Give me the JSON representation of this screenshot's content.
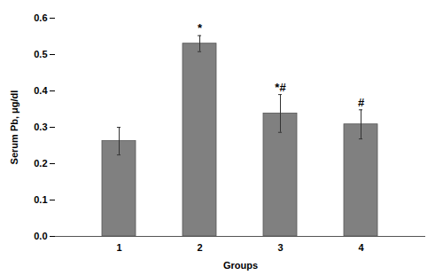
{
  "chart_data": {
    "type": "bar",
    "categories": [
      "1",
      "2",
      "3",
      "4"
    ],
    "values": [
      0.262,
      0.53,
      0.338,
      0.308
    ],
    "errors": [
      0.038,
      0.022,
      0.052,
      0.04
    ],
    "annotations": [
      null,
      "*",
      "*#",
      "#"
    ],
    "color": "#808080",
    "xlabel": "Groups",
    "ylabel": "Serum Pb, μg/dl",
    "ylim": [
      0,
      0.6
    ],
    "yticks": [
      {
        "value": 0,
        "label": "0.0"
      },
      0.1,
      0.2,
      0.3,
      0.4,
      0.5,
      0.6
    ],
    "grid": false
  }
}
